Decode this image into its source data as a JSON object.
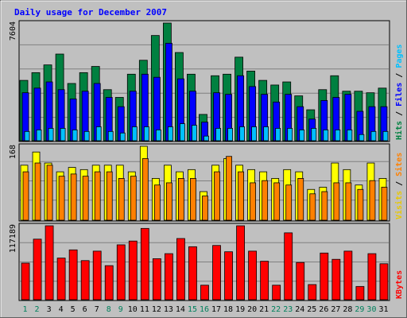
{
  "chart_data": {
    "type": "bar",
    "title": "Daily usage for December 2007",
    "categories": [
      "1",
      "2",
      "3",
      "4",
      "5",
      "6",
      "7",
      "8",
      "9",
      "10",
      "11",
      "12",
      "13",
      "14",
      "15",
      "16",
      "17",
      "18",
      "19",
      "20",
      "21",
      "22",
      "23",
      "24",
      "25",
      "26",
      "27",
      "28",
      "29",
      "30",
      "31"
    ],
    "weekend_days": [
      "1",
      "2",
      "8",
      "9",
      "15",
      "16",
      "22",
      "23",
      "29",
      "30"
    ],
    "panels": [
      {
        "id": "pages_files_hits",
        "ymax_label": "7604",
        "ymax": 7604,
        "right_labels": [
          {
            "text": "Hits",
            "color": "#008040"
          },
          {
            "text": "Files",
            "color": "#0000ff"
          },
          {
            "text": "Pages",
            "color": "#00c0ff"
          }
        ],
        "series": [
          {
            "name": "Hits",
            "color": "#008040",
            "values": [
              3900,
              4400,
              4900,
              5600,
              3700,
              4400,
              4800,
              3300,
              2800,
              4300,
              5200,
              6800,
              7604,
              5700,
              4300,
              1700,
              4200,
              4300,
              5400,
              4500,
              3900,
              3600,
              3800,
              2900,
              2000,
              3300,
              4200,
              3200,
              3200,
              3100,
              3400
            ]
          },
          {
            "name": "Files",
            "color": "#0000ff",
            "values": [
              3100,
              3400,
              3800,
              3300,
              2700,
              3200,
              3700,
              2800,
              2200,
              3200,
              4300,
              4100,
              6300,
              4000,
              3200,
              1200,
              3100,
              3000,
              4200,
              3500,
              3000,
              2500,
              3000,
              2200,
              1400,
              2600,
              2800,
              3000,
              1900,
              2200,
              2200
            ]
          },
          {
            "name": "Pages",
            "color": "#00c0ff",
            "values": [
              600,
              700,
              800,
              800,
              700,
              600,
              900,
              600,
              500,
              900,
              900,
              700,
              900,
              1100,
              1000,
              300,
              800,
              800,
              900,
              900,
              900,
              800,
              800,
              700,
              800,
              700,
              700,
              700,
              400,
              600,
              600
            ]
          }
        ]
      },
      {
        "id": "visits_sites",
        "ymax_label": "168",
        "ymax": 168,
        "right_labels": [
          {
            "text": "Visits",
            "color": "#e8c800"
          },
          {
            "text": "Sites",
            "color": "#ff8000"
          }
        ],
        "series": [
          {
            "name": "Visits",
            "color": "#ffff00",
            "values": [
              125,
              155,
              130,
              110,
              120,
              115,
              125,
              125,
              125,
              110,
              168,
              95,
              125,
              110,
              115,
              65,
              125,
              140,
              125,
              115,
              110,
              95,
              115,
              110,
              70,
              75,
              130,
              115,
              80,
              130,
              95
            ]
          },
          {
            "name": "Sites",
            "color": "#ff8000",
            "values": [
              110,
              130,
              125,
              100,
              105,
              100,
              110,
              110,
              95,
              100,
              140,
              80,
              85,
              95,
              95,
              55,
              110,
              145,
              110,
              85,
              90,
              85,
              80,
              95,
              60,
              65,
              85,
              85,
              70,
              90,
              75
            ]
          }
        ]
      },
      {
        "id": "kbytes",
        "ymax_label": "117189",
        "ymax": 117189,
        "right_labels": [
          {
            "text": "KBytes",
            "color": "#ff0000"
          }
        ],
        "series": [
          {
            "name": "KBytes",
            "color": "#ff0000",
            "values": [
              58000,
              96000,
              117189,
              66000,
              79000,
              62000,
              77000,
              54000,
              87000,
              93000,
              113000,
              65000,
              73000,
              97000,
              84000,
              23000,
              86000,
              76000,
              117189,
              77000,
              61000,
              23000,
              106000,
              59000,
              24000,
              74000,
              64000,
              77000,
              21000,
              73000,
              57000
            ]
          }
        ]
      }
    ]
  }
}
